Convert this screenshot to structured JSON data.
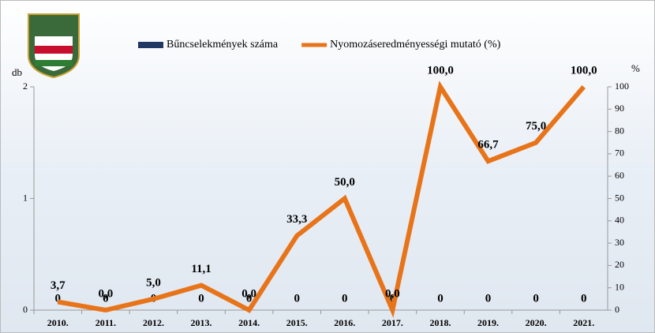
{
  "chart_data": {
    "type": "bar-line",
    "categories": [
      "2010.",
      "2011.",
      "2012.",
      "2013.",
      "2014.",
      "2015.",
      "2016.",
      "2017.",
      "2018.",
      "2019.",
      "2020.",
      "2021."
    ],
    "ylabel": "db",
    "y2label": "%",
    "ylim": [
      0,
      2
    ],
    "yticks": [
      0,
      1,
      2
    ],
    "y2lim": [
      0,
      100
    ],
    "y2ticks": [
      0,
      10,
      20,
      30,
      40,
      50,
      60,
      70,
      80,
      90,
      100
    ],
    "legend": "top",
    "series": [
      {
        "name": "Bűncselekmények száma",
        "type": "bar",
        "color": "#1f3864",
        "values": [
          0,
          0,
          0,
          0,
          0,
          0,
          0,
          0,
          0,
          0,
          0,
          0
        ]
      },
      {
        "name": "Nyomozáseredményességi mutató (%)",
        "type": "line",
        "axis": "y2",
        "color": "#e8741a",
        "values": [
          3.7,
          0,
          5,
          11.1,
          0,
          33.3,
          50,
          0,
          100,
          66.7,
          75,
          100
        ],
        "value_labels": [
          "3,7",
          "0,0",
          "5,0",
          "11,1",
          "0,0",
          "33,3",
          "50,0",
          "0,0",
          "100,0",
          "66,7",
          "75,0",
          "100,0"
        ]
      }
    ]
  }
}
